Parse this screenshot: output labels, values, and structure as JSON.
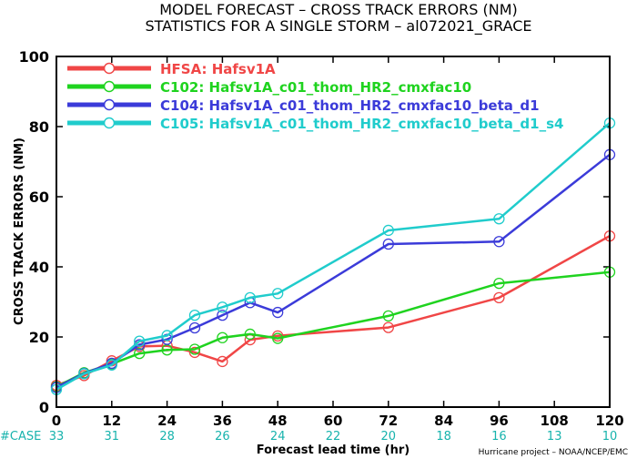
{
  "chart_data": {
    "type": "line",
    "title": "MODEL FORECAST – CROSS TRACK ERRORS (NM)",
    "subtitle": "STATISTICS FOR A SINGLE STORM – al072021_GRACE",
    "xlabel": "Forecast lead time (hr)",
    "ylabel": "CROSS TRACK ERRORS (NM)",
    "credit": "Hurricane project – NOAA/NCEP/EMC",
    "xlim": [
      0,
      120
    ],
    "ylim": [
      0,
      100
    ],
    "xticks": [
      0,
      12,
      24,
      36,
      48,
      60,
      72,
      84,
      96,
      108,
      120
    ],
    "yticks": [
      0,
      20,
      40,
      60,
      80,
      100
    ],
    "legend_position": "top-left",
    "cases_label": "#CASE",
    "cases": {
      "x": [
        0,
        12,
        24,
        36,
        48,
        60,
        72,
        84,
        96,
        108,
        120
      ],
      "values": [
        33,
        31,
        28,
        26,
        24,
        22,
        20,
        18,
        16,
        13,
        10
      ]
    },
    "cases_color": "#17b3ad",
    "series": [
      {
        "name": "HFSA: Hafsv1A",
        "color": "#f04646",
        "x": [
          0,
          6,
          12,
          18,
          24,
          30,
          36,
          42,
          48,
          72,
          96,
          120
        ],
        "values": [
          6.2,
          9.0,
          13.2,
          17.3,
          17.5,
          15.6,
          13.0,
          19.2,
          20.3,
          22.7,
          31.2,
          48.8
        ]
      },
      {
        "name": "C102: Hafsv1A_c01_thom_HR2_cmxfac10",
        "color": "#1fd31f",
        "x": [
          0,
          6,
          12,
          18,
          24,
          30,
          36,
          42,
          48,
          72,
          96,
          120
        ],
        "values": [
          5.8,
          9.8,
          12.3,
          15.3,
          16.3,
          16.5,
          19.8,
          20.8,
          19.6,
          26.0,
          35.3,
          38.5
        ]
      },
      {
        "name": "C104: Hafsv1A_c01_thom_HR2_cmxfac10_beta_d1",
        "color": "#3b3bd9",
        "x": [
          0,
          6,
          12,
          18,
          24,
          30,
          36,
          42,
          48,
          72,
          96,
          120
        ],
        "values": [
          5.6,
          9.6,
          12.5,
          17.8,
          19.3,
          22.6,
          26.2,
          29.8,
          27.0,
          46.5,
          47.2,
          72.0
        ]
      },
      {
        "name": "C105: Hafsv1A_c01_thom_HR2_cmxfac10_beta_d1_s4",
        "color": "#20cccc",
        "x": [
          0,
          6,
          12,
          18,
          24,
          30,
          36,
          42,
          48,
          72,
          96,
          120
        ],
        "values": [
          5.0,
          9.5,
          12.0,
          18.8,
          20.4,
          26.2,
          28.5,
          31.2,
          32.4,
          50.4,
          53.7,
          81.0
        ]
      }
    ]
  }
}
